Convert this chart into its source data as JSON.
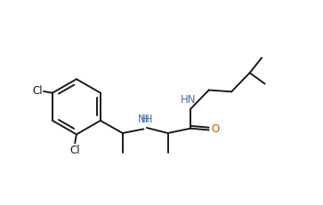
{
  "bg_color": "#ffffff",
  "line_color": "#1a1a1a",
  "label_color_N": "#4a6fa5",
  "label_color_O": "#b85c00",
  "line_width": 1.4,
  "font_size": 8.5,
  "fig_width": 3.63,
  "fig_height": 2.31,
  "dpi": 100,
  "xlim": [
    0,
    10
  ],
  "ylim": [
    0,
    6.37
  ]
}
